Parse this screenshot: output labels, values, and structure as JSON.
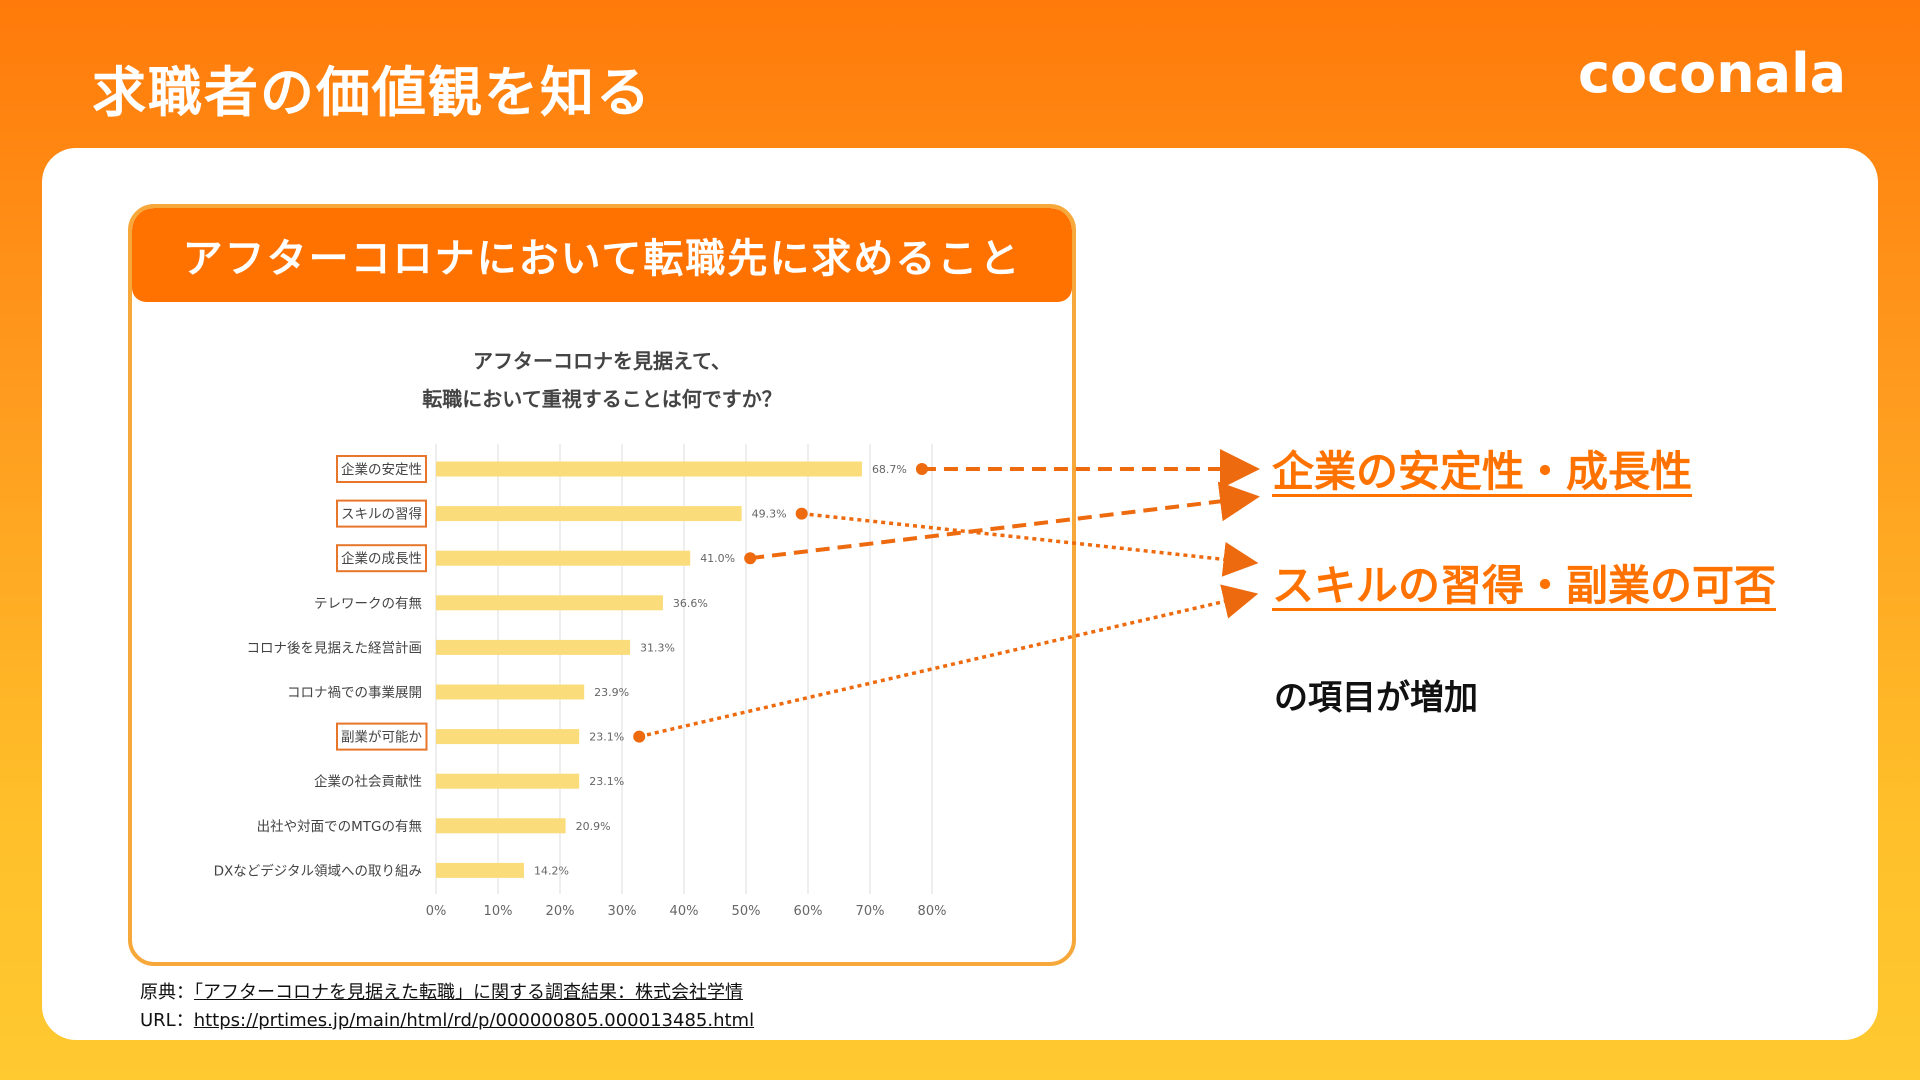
{
  "slide": {
    "title": "求職者の価値観を知る",
    "logo_text": "coconala"
  },
  "card": {
    "header": "アフターコロナにおいて転職先に求めること"
  },
  "chart_data": {
    "type": "bar",
    "orientation": "horizontal",
    "title_lines": [
      "アフターコロナを見据えて、",
      "転職において重視することは何ですか？"
    ],
    "categories": [
      "企業の安定性",
      "スキルの習得",
      "企業の成長性",
      "テレワークの有無",
      "コロナ後を見据えた経営計画",
      "コロナ禍での事業展開",
      "副業が可能か",
      "企業の社会貢献性",
      "出社や対面でのMTGの有無",
      "DXなどデジタル領域への取り組み"
    ],
    "values": [
      68.7,
      49.3,
      41.0,
      36.6,
      31.3,
      23.9,
      23.1,
      23.1,
      20.9,
      14.2
    ],
    "value_labels": [
      "68.7%",
      "49.3%",
      "41.0%",
      "36.6%",
      "31.3%",
      "23.9%",
      "23.1%",
      "23.1%",
      "20.9%",
      "14.2%"
    ],
    "highlighted": [
      "企業の安定性",
      "スキルの習得",
      "企業の成長性",
      "副業が可能か"
    ],
    "x_ticks": [
      "0%",
      "10%",
      "20%",
      "30%",
      "40%",
      "50%",
      "60%",
      "70%",
      "80%"
    ],
    "xlim": [
      0,
      80
    ],
    "grid": true,
    "bar_color": "#fbdc7a",
    "highlight_box_color": "#e8762a"
  },
  "takeaways": {
    "line1": "企業の安定性・成長性",
    "line2": "スキルの習得・副業の可否",
    "sub": "の項目が増加"
  },
  "source": {
    "label1": "原典：",
    "text1": "「アフターコロナを見据えた転職」に関する調査結果：株式会社学情",
    "label2": "URL：",
    "text2": "https://prtimes.jp/main/html/rd/p/000000805.000013485.html"
  },
  "colors": {
    "accent": "#ff7200",
    "connector": "#ee6a0e"
  }
}
